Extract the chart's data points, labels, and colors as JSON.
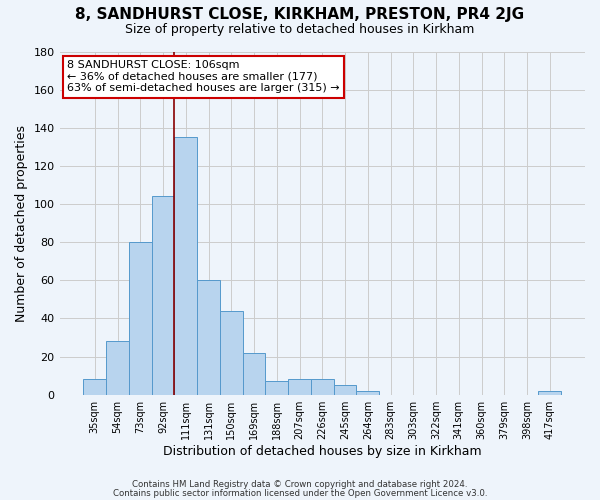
{
  "title": "8, SANDHURST CLOSE, KIRKHAM, PRESTON, PR4 2JG",
  "subtitle": "Size of property relative to detached houses in Kirkham",
  "xlabel": "Distribution of detached houses by size in Kirkham",
  "ylabel": "Number of detached properties",
  "bar_labels": [
    "35sqm",
    "54sqm",
    "73sqm",
    "92sqm",
    "111sqm",
    "131sqm",
    "150sqm",
    "169sqm",
    "188sqm",
    "207sqm",
    "226sqm",
    "245sqm",
    "264sqm",
    "283sqm",
    "303sqm",
    "322sqm",
    "341sqm",
    "360sqm",
    "379sqm",
    "398sqm",
    "417sqm"
  ],
  "bar_heights": [
    8,
    28,
    80,
    104,
    135,
    60,
    44,
    22,
    7,
    8,
    8,
    5,
    2,
    0,
    0,
    0,
    0,
    0,
    0,
    0,
    2
  ],
  "bar_color": "#b8d4ee",
  "bar_edge_color": "#5599cc",
  "grid_color": "#cccccc",
  "background_color": "#eef4fb",
  "red_line_x": 4,
  "red_line_color": "#880000",
  "annotation_title": "8 SANDHURST CLOSE: 106sqm",
  "annotation_line2": "← 36% of detached houses are smaller (177)",
  "annotation_line3": "63% of semi-detached houses are larger (315) →",
  "annotation_box_color": "#ffffff",
  "annotation_border_color": "#cc0000",
  "ylim": [
    0,
    180
  ],
  "yticks": [
    0,
    20,
    40,
    60,
    80,
    100,
    120,
    140,
    160,
    180
  ],
  "footer1": "Contains HM Land Registry data © Crown copyright and database right 2024.",
  "footer2": "Contains public sector information licensed under the Open Government Licence v3.0."
}
